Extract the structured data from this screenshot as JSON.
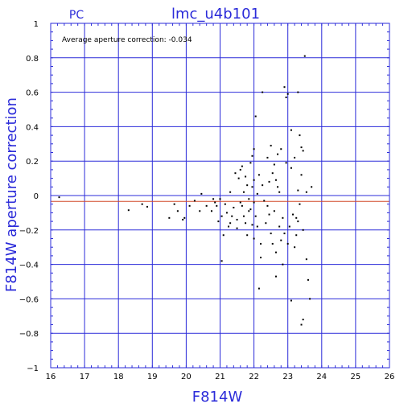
{
  "chart_data": {
    "type": "scatter",
    "corner_label": "PC",
    "title": "lmc_u4b101",
    "annotation": "Average aperture correction: -0.034",
    "xlabel": "F814W",
    "ylabel": "F814W aperture correction",
    "xlim": [
      16,
      26
    ],
    "ylim": [
      -1,
      1
    ],
    "xticks": [
      "16",
      "17",
      "18",
      "19",
      "20",
      "21",
      "22",
      "23",
      "24",
      "25",
      "26"
    ],
    "yticks": [
      "1",
      "0.8",
      "0.6",
      "0.4",
      "0.2",
      "0",
      "−0.2",
      "−0.4",
      "−0.6",
      "−0.8",
      "−1"
    ],
    "grid": true,
    "reference_lines": [
      {
        "y": 0,
        "color": "#2b2bd9"
      },
      {
        "y": -0.034,
        "color": "#d24a2a"
      }
    ],
    "colors": {
      "axes": "#2b2bd9",
      "points": "#000000",
      "average_line": "#d24a2a"
    },
    "points": [
      [
        16.25,
        -0.01
      ],
      [
        18.3,
        -0.085
      ],
      [
        18.7,
        -0.05
      ],
      [
        18.85,
        -0.065
      ],
      [
        19.5,
        -0.13
      ],
      [
        19.65,
        -0.05
      ],
      [
        19.75,
        -0.09
      ],
      [
        19.9,
        -0.14
      ],
      [
        19.95,
        -0.13
      ],
      [
        20.1,
        -0.06
      ],
      [
        20.25,
        -0.03
      ],
      [
        20.4,
        -0.09
      ],
      [
        20.45,
        0.01
      ],
      [
        20.6,
        -0.06
      ],
      [
        20.75,
        -0.09
      ],
      [
        20.8,
        -0.02
      ],
      [
        20.85,
        -0.04
      ],
      [
        20.9,
        -0.06
      ],
      [
        20.95,
        -0.15
      ],
      [
        21.0,
        -0.02
      ],
      [
        21.05,
        -0.38
      ],
      [
        21.05,
        -0.12
      ],
      [
        21.1,
        -0.23
      ],
      [
        21.15,
        -0.05
      ],
      [
        21.2,
        -0.1
      ],
      [
        21.25,
        -0.18
      ],
      [
        21.3,
        0.02
      ],
      [
        21.35,
        -0.12
      ],
      [
        21.4,
        -0.07
      ],
      [
        21.45,
        0.13
      ],
      [
        21.5,
        -0.14
      ],
      [
        21.5,
        -0.19
      ],
      [
        21.55,
        0.1
      ],
      [
        21.6,
        0.15
      ],
      [
        21.6,
        -0.04
      ],
      [
        21.65,
        0.17
      ],
      [
        21.65,
        -0.06
      ],
      [
        21.7,
        0.02
      ],
      [
        21.7,
        -0.12
      ],
      [
        21.75,
        0.11
      ],
      [
        21.75,
        -0.16
      ],
      [
        21.8,
        -0.23
      ],
      [
        21.8,
        0.06
      ],
      [
        21.85,
        -0.09
      ],
      [
        21.85,
        -0.02
      ],
      [
        21.9,
        0.19
      ],
      [
        21.9,
        -0.08
      ],
      [
        21.95,
        0.23
      ],
      [
        21.95,
        -0.17
      ],
      [
        22.0,
        0.27
      ],
      [
        22.0,
        0.09
      ],
      [
        22.0,
        -0.04
      ],
      [
        22.0,
        -0.25
      ],
      [
        22.05,
        0.46
      ],
      [
        22.05,
        -0.12
      ],
      [
        22.1,
        0.01
      ],
      [
        22.1,
        -0.18
      ],
      [
        22.15,
        -0.54
      ],
      [
        22.15,
        0.12
      ],
      [
        22.2,
        -0.36
      ],
      [
        22.2,
        -0.28
      ],
      [
        22.25,
        0.6
      ],
      [
        22.25,
        0.06
      ],
      [
        22.3,
        -0.03
      ],
      [
        22.35,
        -0.16
      ],
      [
        22.4,
        0.22
      ],
      [
        22.45,
        0.08
      ],
      [
        22.45,
        -0.11
      ],
      [
        22.5,
        0.29
      ],
      [
        22.5,
        -0.22
      ],
      [
        22.55,
        0.13
      ],
      [
        22.55,
        -0.28
      ],
      [
        22.6,
        0.18
      ],
      [
        22.6,
        -0.09
      ],
      [
        22.65,
        -0.33
      ],
      [
        22.65,
        -0.47
      ],
      [
        22.7,
        0.24
      ],
      [
        22.7,
        0.05
      ],
      [
        22.75,
        -0.18
      ],
      [
        22.75,
        0.02
      ],
      [
        22.8,
        0.27
      ],
      [
        22.8,
        -0.26
      ],
      [
        22.85,
        -0.4
      ],
      [
        22.85,
        -0.13
      ],
      [
        22.9,
        0.63
      ],
      [
        22.9,
        -0.22
      ],
      [
        22.95,
        0.57
      ],
      [
        22.95,
        0.19
      ],
      [
        23.0,
        0.59
      ],
      [
        23.0,
        -0.28
      ],
      [
        23.05,
        -0.18
      ],
      [
        23.1,
        0.38
      ],
      [
        23.1,
        -0.61
      ],
      [
        23.15,
        -0.11
      ],
      [
        23.2,
        0.22
      ],
      [
        23.2,
        -0.3
      ],
      [
        23.25,
        -0.23
      ],
      [
        23.3,
        0.6
      ],
      [
        23.3,
        0.03
      ],
      [
        23.35,
        0.35
      ],
      [
        23.35,
        -0.05
      ],
      [
        23.4,
        0.28
      ],
      [
        23.4,
        0.12
      ],
      [
        23.4,
        -0.75
      ],
      [
        23.45,
        0.26
      ],
      [
        23.45,
        -0.72
      ],
      [
        23.5,
        0.81
      ],
      [
        23.55,
        0.02
      ],
      [
        23.55,
        -0.37
      ],
      [
        23.6,
        -0.49
      ],
      [
        23.65,
        -0.6
      ],
      [
        23.7,
        0.05
      ],
      [
        23.3,
        -0.15
      ],
      [
        23.45,
        -0.2
      ],
      [
        23.25,
        -0.13
      ],
      [
        22.65,
        0.09
      ],
      [
        21.95,
        0.05
      ],
      [
        22.4,
        -0.06
      ],
      [
        21.3,
        -0.16
      ],
      [
        23.1,
        0.16
      ]
    ]
  }
}
